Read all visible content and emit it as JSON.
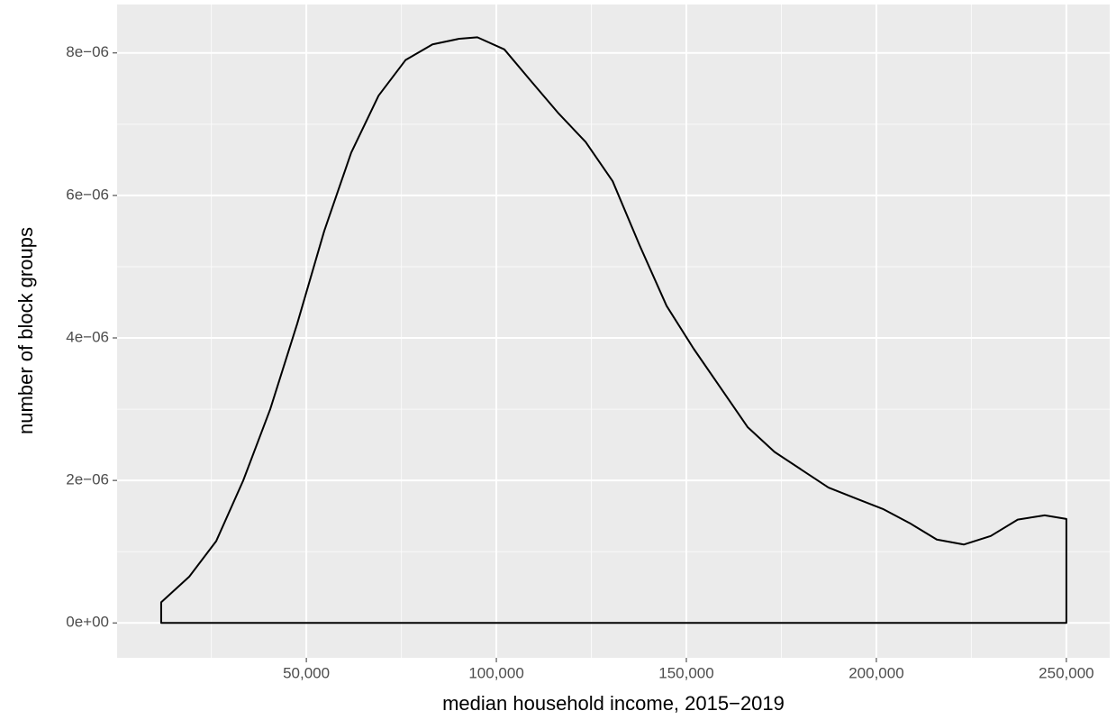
{
  "chart_data": {
    "type": "density",
    "x_label": "median household income, 2015−2019",
    "y_label": "number of block groups",
    "x": [
      11800,
      19200,
      26300,
      33400,
      40500,
      47600,
      54700,
      61800,
      69000,
      76100,
      83200,
      90300,
      95000,
      102100,
      109200,
      116400,
      123500,
      130600,
      137700,
      144800,
      151900,
      159000,
      166100,
      173200,
      180300,
      187400,
      194500,
      201700,
      208800,
      215900,
      223000,
      230100,
      237200,
      244300,
      250000
    ],
    "values": [
      2.9e-07,
      6.5e-07,
      1.15e-06,
      2e-06,
      3e-06,
      4.2e-06,
      5.5e-06,
      6.6e-06,
      7.4e-06,
      7.9e-06,
      8.12e-06,
      8.2e-06,
      8.22e-06,
      8.05e-06,
      7.6e-06,
      7.15e-06,
      6.75e-06,
      6.2e-06,
      5.3e-06,
      4.45e-06,
      3.85e-06,
      3.3e-06,
      2.75e-06,
      2.4e-06,
      2.15e-06,
      1.9e-06,
      1.75e-06,
      1.6e-06,
      1.4e-06,
      1.17e-06,
      1.1e-06,
      1.22e-06,
      1.45e-06,
      1.51e-06,
      1.46e-06
    ],
    "color": "#000000",
    "xlim": [
      200,
      261400
    ],
    "ylim": [
      -4.9e-07,
      8.68e-06
    ],
    "xticks": [
      {
        "value": 50000,
        "label": "50,000"
      },
      {
        "value": 100000,
        "label": "100,000"
      },
      {
        "value": 150000,
        "label": "150,000"
      },
      {
        "value": 200000,
        "label": "200,000"
      },
      {
        "value": 250000,
        "label": "250,000"
      }
    ],
    "yticks": [
      {
        "value": 0,
        "label": "0e+00"
      },
      {
        "value": 2e-06,
        "label": "2e−06"
      },
      {
        "value": 4e-06,
        "label": "4e−06"
      },
      {
        "value": 6e-06,
        "label": "6e−06"
      },
      {
        "value": 8e-06,
        "label": "8e−06"
      }
    ],
    "x_minor_breaks": [
      25000,
      75000,
      125000,
      175000,
      225000
    ],
    "y_minor_breaks": [
      1e-06,
      3e-06,
      5e-06,
      7e-06
    ],
    "grid": true
  }
}
